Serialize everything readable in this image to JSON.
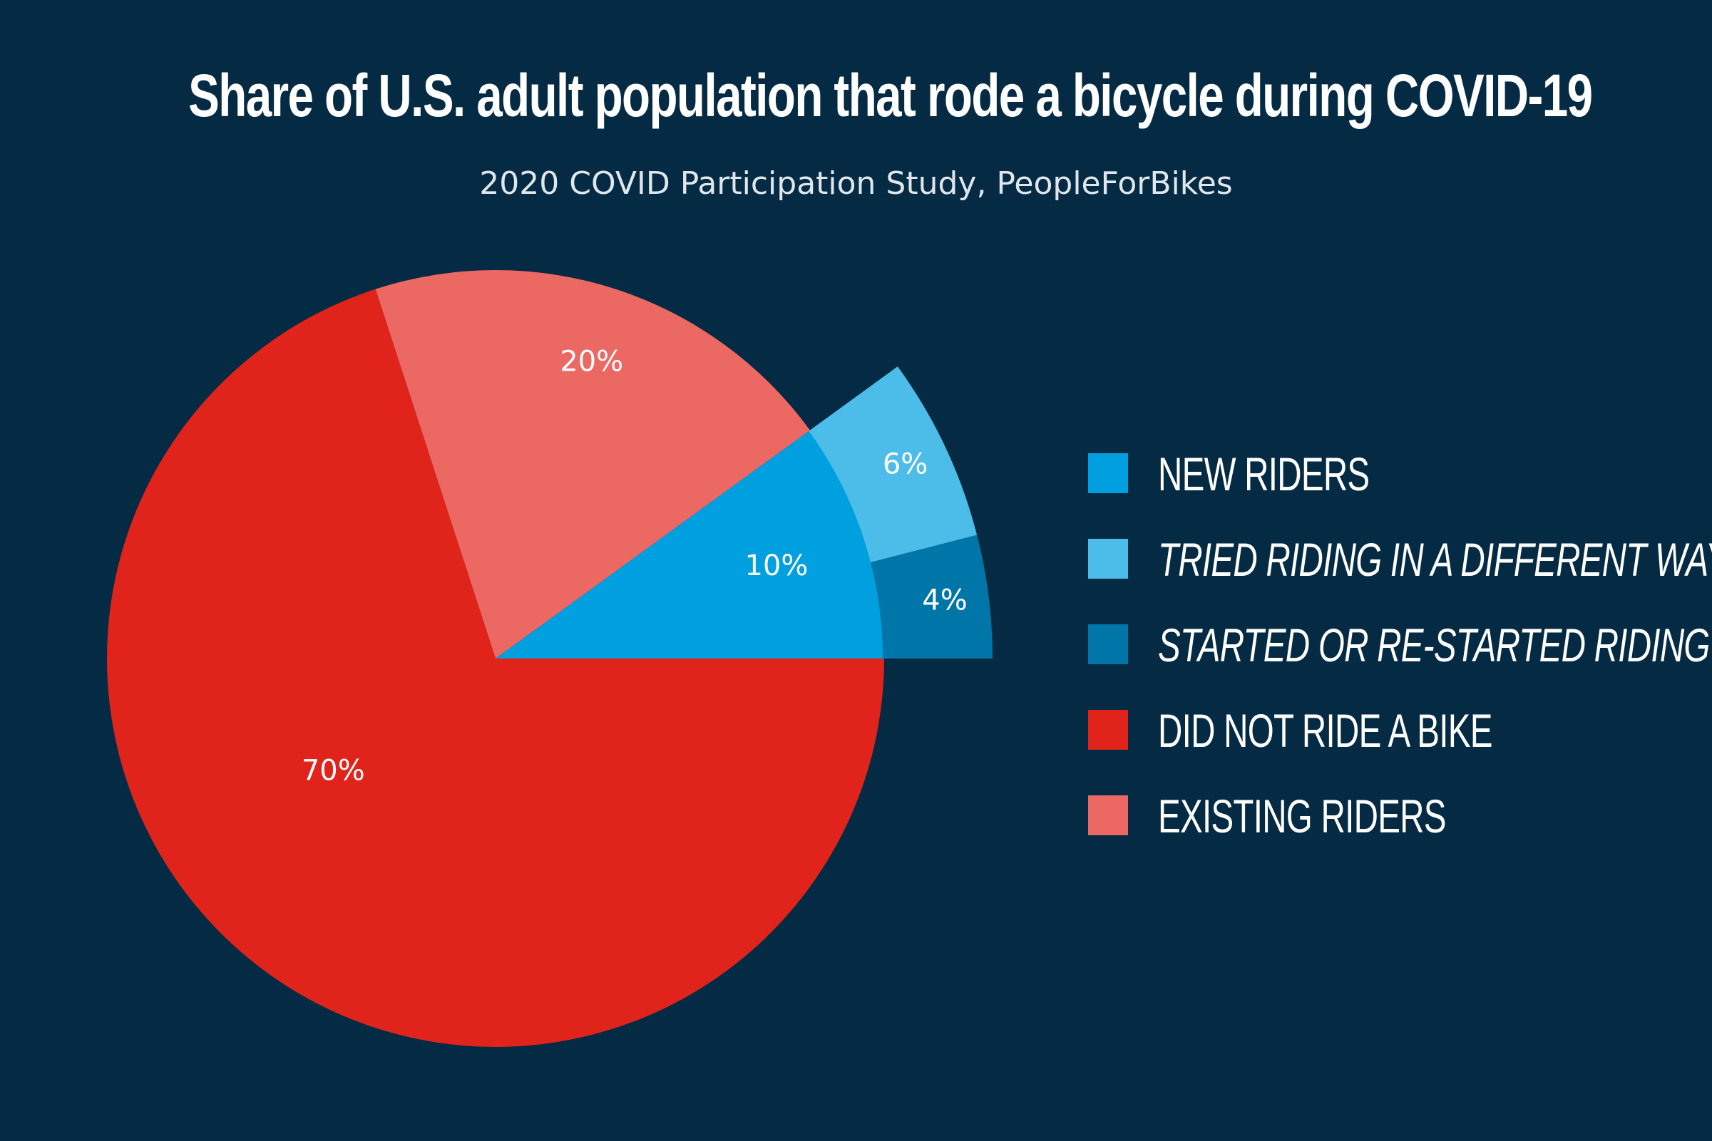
{
  "chart_data": {
    "type": "pie",
    "title": "Share of U.S. adult population that rode a bicycle during COVID-19",
    "subtitle": "2020 COVID Participation Study, PeopleForBikes",
    "slices": [
      {
        "name": "DID NOT RIDE A BIKE",
        "value": 70,
        "label": "70%",
        "color": "#e0241b"
      },
      {
        "name": "EXISTING RIDERS",
        "value": 20,
        "label": "20%",
        "color": "#ec6862"
      },
      {
        "name": "NEW RIDERS",
        "value": 10,
        "label": "10%",
        "color": "#00a0e0"
      },
      {
        "name": "TRIED RIDING IN A DIFFERENT WAY",
        "value": 6,
        "label": "6%",
        "color": "#4cbce9",
        "part_of": "NEW RIDERS"
      },
      {
        "name": "STARTED OR RE-STARTED RIDING",
        "value": 4,
        "label": "4%",
        "color": "#0076a8",
        "part_of": "NEW RIDERS"
      }
    ],
    "legend": {
      "placement": "right",
      "items": [
        {
          "label": "NEW RIDERS",
          "color": "#00a0e0",
          "italic": false
        },
        {
          "label": "TRIED RIDING IN A DIFFERENT WAY",
          "color": "#4cbce9",
          "italic": true
        },
        {
          "label": "STARTED OR RE-STARTED RIDING",
          "color": "#0076a8",
          "italic": true
        },
        {
          "label": "DID NOT RIDE A BIKE",
          "color": "#e0241b",
          "italic": false
        },
        {
          "label": "EXISTING RIDERS",
          "color": "#ec6862",
          "italic": false
        }
      ]
    }
  },
  "colors": {
    "background": "#042b43"
  }
}
